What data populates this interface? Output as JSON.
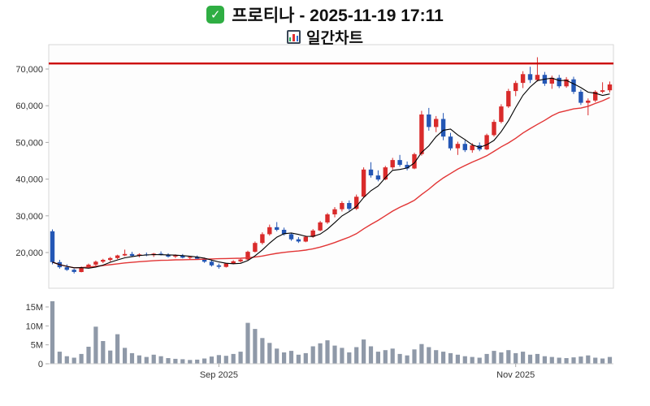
{
  "header": {
    "title": "프로티나 - 2025-11-19 17:11",
    "subtitle": "일간차트",
    "icons": {
      "title_icon": "checkbox-checked",
      "subtitle_icon": "bar-chart"
    }
  },
  "chart_data": {
    "type": "candlestick",
    "title": "프로티나 일간차트",
    "legend_position": "none",
    "grid": false,
    "price_axis": {
      "min": 12000,
      "max": 76000,
      "ticks": [
        {
          "value": 20000,
          "label": "20,000"
        },
        {
          "value": 30000,
          "label": "30,000"
        },
        {
          "value": 40000,
          "label": "40,000"
        },
        {
          "value": 50000,
          "label": "50,000"
        },
        {
          "value": 60000,
          "label": "60,000"
        },
        {
          "value": 70000,
          "label": "70,000"
        }
      ]
    },
    "volume_axis": {
      "unit": "M",
      "max": 17,
      "ticks": [
        {
          "value": 0,
          "label": "0"
        },
        {
          "value": 5,
          "label": "5M"
        },
        {
          "value": 10,
          "label": "10M"
        },
        {
          "value": 15,
          "label": "15M"
        }
      ]
    },
    "x_ticks": [
      {
        "label": "Sep 2025",
        "index": 23
      },
      {
        "label": "Nov 2025",
        "index": 64
      }
    ],
    "resistance_line": {
      "value": 71500,
      "color": "#cc0000"
    },
    "ma_periods": {
      "short": 5,
      "long": 20
    },
    "colors": {
      "up": "#d92b2b",
      "down": "#2457b5",
      "ma_short": "#000000",
      "ma_long": "#e23535",
      "volume": "#8f99a8",
      "panel_border": "#d7d7d7",
      "panel_fill": "#fdfdfd"
    },
    "candles_format": [
      "open",
      "high",
      "low",
      "close",
      "volume_millions"
    ],
    "candles": [
      [
        25800,
        26300,
        16800,
        17400,
        16.5
      ],
      [
        17400,
        18000,
        15600,
        16000,
        3.2
      ],
      [
        16000,
        16800,
        15000,
        15300,
        2.0
      ],
      [
        15300,
        15600,
        14300,
        14700,
        1.6
      ],
      [
        14700,
        16200,
        14600,
        16000,
        2.6
      ],
      [
        16000,
        17000,
        15800,
        16700,
        4.5
      ],
      [
        16700,
        17800,
        16400,
        17500,
        9.8
      ],
      [
        17500,
        18300,
        17100,
        18000,
        6.0
      ],
      [
        18000,
        18800,
        17500,
        18500,
        3.5
      ],
      [
        18500,
        19400,
        18200,
        19200,
        7.8
      ],
      [
        19200,
        20800,
        19000,
        19600,
        4.2
      ],
      [
        19600,
        20200,
        18900,
        19100,
        2.8
      ],
      [
        19100,
        19800,
        18700,
        19500,
        2.2
      ],
      [
        19500,
        20000,
        19000,
        19300,
        1.8
      ],
      [
        19300,
        19900,
        18800,
        19700,
        2.4
      ],
      [
        19700,
        20300,
        19200,
        19400,
        2.0
      ],
      [
        19400,
        19800,
        18600,
        18900,
        1.5
      ],
      [
        18900,
        19500,
        18500,
        19200,
        1.3
      ],
      [
        19200,
        19600,
        18400,
        18600,
        1.2
      ],
      [
        18600,
        19000,
        18000,
        18800,
        1.0
      ],
      [
        18800,
        19200,
        18100,
        18300,
        1.1
      ],
      [
        18300,
        18600,
        17200,
        17500,
        1.4
      ],
      [
        17500,
        17800,
        16200,
        16500,
        1.9
      ],
      [
        16500,
        17000,
        15600,
        16100,
        2.3
      ],
      [
        16100,
        17200,
        15900,
        17000,
        2.1
      ],
      [
        17000,
        17900,
        16800,
        17600,
        2.6
      ],
      [
        17600,
        18400,
        17300,
        18100,
        3.2
      ],
      [
        18100,
        20500,
        17900,
        20200,
        10.8
      ],
      [
        20200,
        23000,
        20000,
        22600,
        9.2
      ],
      [
        22600,
        25500,
        22200,
        25000,
        6.8
      ],
      [
        25000,
        27600,
        24600,
        26900,
        5.5
      ],
      [
        26900,
        28300,
        25800,
        26200,
        4.0
      ],
      [
        26200,
        26800,
        24600,
        25000,
        3.0
      ],
      [
        25000,
        25400,
        23200,
        23600,
        3.4
      ],
      [
        23600,
        24200,
        22600,
        23000,
        2.4
      ],
      [
        23000,
        24600,
        22800,
        24300,
        2.8
      ],
      [
        24300,
        26400,
        24000,
        26000,
        4.6
      ],
      [
        26000,
        28600,
        25800,
        28200,
        5.4
      ],
      [
        28200,
        30800,
        27800,
        30400,
        6.2
      ],
      [
        30400,
        32400,
        29600,
        31800,
        4.8
      ],
      [
        31800,
        34000,
        31200,
        33500,
        4.2
      ],
      [
        33500,
        34200,
        31400,
        31900,
        3.0
      ],
      [
        31900,
        35800,
        31600,
        35200,
        4.4
      ],
      [
        35200,
        43200,
        34800,
        42600,
        6.4
      ],
      [
        42600,
        44600,
        40400,
        41000,
        4.6
      ],
      [
        41000,
        42400,
        39400,
        39900,
        3.2
      ],
      [
        39900,
        43600,
        39700,
        43200,
        3.6
      ],
      [
        43200,
        45800,
        42600,
        45200,
        4.0
      ],
      [
        45200,
        46600,
        43400,
        43900,
        2.6
      ],
      [
        43900,
        44800,
        42400,
        42900,
        2.2
      ],
      [
        42900,
        47200,
        42700,
        46800,
        3.8
      ],
      [
        46800,
        58600,
        46400,
        57600,
        5.2
      ],
      [
        57600,
        59400,
        53200,
        54200,
        4.4
      ],
      [
        54200,
        57200,
        52800,
        56400,
        3.6
      ],
      [
        56400,
        58000,
        50600,
        51600,
        3.2
      ],
      [
        51600,
        52600,
        47800,
        48400,
        2.8
      ],
      [
        48400,
        50200,
        46600,
        49600,
        2.4
      ],
      [
        49600,
        50600,
        47400,
        47900,
        2.0
      ],
      [
        47900,
        49800,
        47200,
        49200,
        1.8
      ],
      [
        49200,
        50000,
        47600,
        48100,
        1.6
      ],
      [
        48100,
        52400,
        47900,
        52000,
        2.6
      ],
      [
        52000,
        56200,
        51600,
        55600,
        3.4
      ],
      [
        55600,
        60400,
        55200,
        59800,
        3.0
      ],
      [
        59800,
        64600,
        59400,
        64000,
        3.6
      ],
      [
        64000,
        66800,
        62600,
        66200,
        2.8
      ],
      [
        66200,
        69400,
        64800,
        68600,
        3.2
      ],
      [
        68600,
        70600,
        66200,
        67000,
        2.4
      ],
      [
        67000,
        73200,
        66600,
        68400,
        2.6
      ],
      [
        68400,
        69200,
        65400,
        66000,
        2.0
      ],
      [
        66000,
        68200,
        64600,
        67600,
        1.8
      ],
      [
        67600,
        68400,
        64800,
        65300,
        1.6
      ],
      [
        65300,
        67800,
        64900,
        67200,
        1.5
      ],
      [
        67200,
        67900,
        63200,
        63800,
        1.7
      ],
      [
        63800,
        64400,
        60200,
        60800,
        1.9
      ],
      [
        60800,
        62000,
        57400,
        61400,
        2.2
      ],
      [
        61400,
        64200,
        61000,
        63800,
        1.6
      ],
      [
        63800,
        66400,
        63400,
        64200,
        1.4
      ],
      [
        64200,
        66600,
        63600,
        65800,
        1.8
      ]
    ]
  }
}
